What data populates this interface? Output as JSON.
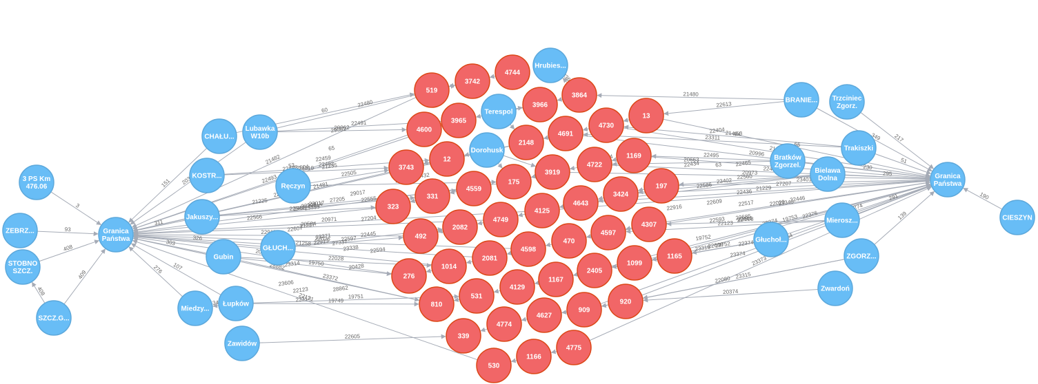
{
  "colors": {
    "place": "#68bdf6",
    "place_stroke": "#5ca8db",
    "record": "#f16667",
    "record_stroke": "#dc4717",
    "edge": "#a5abb6",
    "label": "#ffffff"
  },
  "nodes": [
    {
      "id": "gp_l",
      "lines": [
        "Granica",
        "Państwa"
      ],
      "kind": "place"
    },
    {
      "id": "gp_r",
      "lines": [
        "Granica",
        "Państwa"
      ],
      "kind": "place"
    },
    {
      "id": "ps3",
      "lines": [
        "3 PS Km",
        "476.06"
      ],
      "kind": "place"
    },
    {
      "id": "zebrz",
      "lines": [
        "ZEBRZ..."
      ],
      "kind": "place"
    },
    {
      "id": "stobno",
      "lines": [
        "STOBNO",
        "SZCZ."
      ],
      "kind": "place"
    },
    {
      "id": "szczg",
      "lines": [
        "SZCZ.G..."
      ],
      "kind": "place"
    },
    {
      "id": "chalu",
      "lines": [
        "CHAŁU..."
      ],
      "kind": "place"
    },
    {
      "id": "lubawka",
      "lines": [
        "Lubawka",
        "W10b"
      ],
      "kind": "place"
    },
    {
      "id": "kostr",
      "lines": [
        "KOSTR..."
      ],
      "kind": "place"
    },
    {
      "id": "reczyn",
      "lines": [
        "Ręczyn"
      ],
      "kind": "place"
    },
    {
      "id": "jakuszy",
      "lines": [
        "Jakuszy..."
      ],
      "kind": "place"
    },
    {
      "id": "gluch",
      "lines": [
        "GŁUCH..."
      ],
      "kind": "place"
    },
    {
      "id": "gubin",
      "lines": [
        "Gubin"
      ],
      "kind": "place"
    },
    {
      "id": "miedzy",
      "lines": [
        "Miedzy..."
      ],
      "kind": "place"
    },
    {
      "id": "lupkow",
      "lines": [
        "Łupków"
      ],
      "kind": "place"
    },
    {
      "id": "zawidow",
      "lines": [
        "Zawidów"
      ],
      "kind": "place"
    },
    {
      "id": "hrubies",
      "lines": [
        "Hrubies..."
      ],
      "kind": "place"
    },
    {
      "id": "terespol",
      "lines": [
        "Terespol"
      ],
      "kind": "place"
    },
    {
      "id": "dorohusk",
      "lines": [
        "Dorohusk"
      ],
      "kind": "place"
    },
    {
      "id": "branie",
      "lines": [
        "BRANIE..."
      ],
      "kind": "place"
    },
    {
      "id": "trzciniec",
      "lines": [
        "Trzciniec",
        "Zgorz."
      ],
      "kind": "place"
    },
    {
      "id": "trakiszki",
      "lines": [
        "Trakiszki"
      ],
      "kind": "place"
    },
    {
      "id": "bratkow",
      "lines": [
        "Bratków",
        "Zgorzel."
      ],
      "kind": "place"
    },
    {
      "id": "bielawa",
      "lines": [
        "Bielawa",
        "Dolna"
      ],
      "kind": "place"
    },
    {
      "id": "mierosz",
      "lines": [
        "Mierosz..."
      ],
      "kind": "place"
    },
    {
      "id": "glucholaz",
      "lines": [
        "Głuchoł..."
      ],
      "kind": "place"
    },
    {
      "id": "zgorz",
      "lines": [
        "ZGORZ..."
      ],
      "kind": "place"
    },
    {
      "id": "zwardon",
      "lines": [
        "Zwardoń"
      ],
      "kind": "place"
    },
    {
      "id": "cieszyn",
      "lines": [
        "CIESZYN"
      ],
      "kind": "place"
    },
    {
      "id": "n519",
      "lines": [
        "519"
      ],
      "kind": "record"
    },
    {
      "id": "n3742",
      "lines": [
        "3742"
      ],
      "kind": "record"
    },
    {
      "id": "n4744",
      "lines": [
        "4744"
      ],
      "kind": "record"
    },
    {
      "id": "n3864",
      "lines": [
        "3864"
      ],
      "kind": "record"
    },
    {
      "id": "n3966",
      "lines": [
        "3966"
      ],
      "kind": "record"
    },
    {
      "id": "n4600",
      "lines": [
        "4600"
      ],
      "kind": "record"
    },
    {
      "id": "n3965",
      "lines": [
        "3965"
      ],
      "kind": "record"
    },
    {
      "id": "n13",
      "lines": [
        "13"
      ],
      "kind": "record"
    },
    {
      "id": "n4730",
      "lines": [
        "4730"
      ],
      "kind": "record"
    },
    {
      "id": "n4691",
      "lines": [
        "4691"
      ],
      "kind": "record"
    },
    {
      "id": "n2148",
      "lines": [
        "2148"
      ],
      "kind": "record"
    },
    {
      "id": "n12",
      "lines": [
        "12"
      ],
      "kind": "record"
    },
    {
      "id": "n3743",
      "lines": [
        "3743"
      ],
      "kind": "record"
    },
    {
      "id": "n1169",
      "lines": [
        "1169"
      ],
      "kind": "record"
    },
    {
      "id": "n4722",
      "lines": [
        "4722"
      ],
      "kind": "record"
    },
    {
      "id": "n3919",
      "lines": [
        "3919"
      ],
      "kind": "record"
    },
    {
      "id": "n175",
      "lines": [
        "175"
      ],
      "kind": "record"
    },
    {
      "id": "n197",
      "lines": [
        "197"
      ],
      "kind": "record"
    },
    {
      "id": "n4559",
      "lines": [
        "4559"
      ],
      "kind": "record"
    },
    {
      "id": "n331",
      "lines": [
        "331"
      ],
      "kind": "record"
    },
    {
      "id": "n323",
      "lines": [
        "323"
      ],
      "kind": "record"
    },
    {
      "id": "n3424",
      "lines": [
        "3424"
      ],
      "kind": "record"
    },
    {
      "id": "n4643",
      "lines": [
        "4643"
      ],
      "kind": "record"
    },
    {
      "id": "n4125",
      "lines": [
        "4125"
      ],
      "kind": "record"
    },
    {
      "id": "n4749",
      "lines": [
        "4749"
      ],
      "kind": "record"
    },
    {
      "id": "n2082",
      "lines": [
        "2082"
      ],
      "kind": "record"
    },
    {
      "id": "n492",
      "lines": [
        "492"
      ],
      "kind": "record"
    },
    {
      "id": "n4307",
      "lines": [
        "4307"
      ],
      "kind": "record"
    },
    {
      "id": "n4597",
      "lines": [
        "4597"
      ],
      "kind": "record"
    },
    {
      "id": "n470",
      "lines": [
        "470"
      ],
      "kind": "record"
    },
    {
      "id": "n4598",
      "lines": [
        "4598"
      ],
      "kind": "record"
    },
    {
      "id": "n2081",
      "lines": [
        "2081"
      ],
      "kind": "record"
    },
    {
      "id": "n1014",
      "lines": [
        "1014"
      ],
      "kind": "record"
    },
    {
      "id": "n276",
      "lines": [
        "276"
      ],
      "kind": "record"
    },
    {
      "id": "n1165",
      "lines": [
        "1165"
      ],
      "kind": "record"
    },
    {
      "id": "n1099",
      "lines": [
        "1099"
      ],
      "kind": "record"
    },
    {
      "id": "n2405",
      "lines": [
        "2405"
      ],
      "kind": "record"
    },
    {
      "id": "n1167",
      "lines": [
        "1167"
      ],
      "kind": "record"
    },
    {
      "id": "n4129",
      "lines": [
        "4129"
      ],
      "kind": "record"
    },
    {
      "id": "n531",
      "lines": [
        "531"
      ],
      "kind": "record"
    },
    {
      "id": "n810",
      "lines": [
        "810"
      ],
      "kind": "record"
    },
    {
      "id": "n920",
      "lines": [
        "920"
      ],
      "kind": "record"
    },
    {
      "id": "n909",
      "lines": [
        "909"
      ],
      "kind": "record"
    },
    {
      "id": "n4627",
      "lines": [
        "4627"
      ],
      "kind": "record"
    },
    {
      "id": "n4774",
      "lines": [
        "4774"
      ],
      "kind": "record"
    },
    {
      "id": "n339",
      "lines": [
        "339"
      ],
      "kind": "record"
    },
    {
      "id": "n4775",
      "lines": [
        "4775"
      ],
      "kind": "record"
    },
    {
      "id": "n1166",
      "lines": [
        "1166"
      ],
      "kind": "record"
    },
    {
      "id": "n530",
      "lines": [
        "530"
      ],
      "kind": "record"
    }
  ],
  "edges": [
    {
      "from": "ps3",
      "to": "gp_l",
      "label": "3"
    },
    {
      "from": "zebrz",
      "to": "gp_l",
      "label": "93"
    },
    {
      "from": "stobno",
      "to": "gp_l",
      "label": "408"
    },
    {
      "from": "szczg",
      "to": "gp_l",
      "label": "409"
    },
    {
      "from": "szczg",
      "to": "stobno",
      "label": "408"
    },
    {
      "from": "chalu",
      "to": "gp_l",
      "label": "151"
    },
    {
      "from": "lubawka",
      "to": "gp_l",
      "label": "203"
    },
    {
      "from": "jakuszy",
      "to": "gp_l",
      "label": "311"
    },
    {
      "from": "gubin",
      "to": "gp_l",
      "label": "303"
    },
    {
      "from": "gluch",
      "to": "gp_l",
      "label": "326"
    },
    {
      "from": "lupkow",
      "to": "gp_l",
      "label": "107"
    },
    {
      "from": "miedzy",
      "to": "gp_l",
      "label": "276"
    },
    {
      "from": "lupkow",
      "to": "miedzy",
      "label": "34"
    },
    {
      "from": "lubawka",
      "to": "n4600",
      "label": "20062"
    },
    {
      "from": "lubawka",
      "to": "n3965",
      "label": "22491"
    },
    {
      "from": "chalu",
      "to": "n519",
      "label": "60"
    },
    {
      "from": "lubawka",
      "to": "n3742",
      "label": "22480"
    },
    {
      "from": "kostr",
      "to": "n12",
      "label": "22492"
    },
    {
      "from": "kostr",
      "to": "n3743",
      "label": "23310"
    },
    {
      "from": "reczyn",
      "to": "n3743",
      "label": "22505"
    },
    {
      "from": "reczyn",
      "to": "n175",
      "label": "21230"
    },
    {
      "from": "jakuszy",
      "to": "n323",
      "label": "22547"
    },
    {
      "from": "jakuszy",
      "to": "n331",
      "label": "23017"
    },
    {
      "from": "jakuszy",
      "to": "n4559",
      "label": "27205"
    },
    {
      "from": "gluch",
      "to": "n492",
      "label": "22597"
    },
    {
      "from": "gluch",
      "to": "n2082",
      "label": "22445"
    },
    {
      "from": "gubin",
      "to": "n276",
      "label": "19750"
    },
    {
      "from": "gubin",
      "to": "n1014",
      "label": "22028"
    },
    {
      "from": "gubin",
      "to": "n810",
      "label": "23372"
    },
    {
      "from": "lupkow",
      "to": "n810",
      "label": "19749"
    },
    {
      "from": "lupkow",
      "to": "n531",
      "label": "19751"
    },
    {
      "from": "zawidow",
      "to": "n339",
      "label": "22605"
    },
    {
      "from": "n4600",
      "to": "gp_l",
      "label": "22493"
    },
    {
      "from": "n519",
      "to": "gp_l",
      "label": "21482"
    },
    {
      "from": "n12",
      "to": "gp_l",
      "label": "22558"
    },
    {
      "from": "n323",
      "to": "gp_l",
      "label": "22566"
    },
    {
      "from": "n492",
      "to": "gp_l",
      "label": "22915"
    },
    {
      "from": "n276",
      "to": "gp_l",
      "label": "20920"
    },
    {
      "from": "n810",
      "to": "gp_l",
      "label": "28882"
    },
    {
      "from": "n530",
      "to": "gp_l",
      "label": "22121"
    },
    {
      "from": "n1014",
      "to": "gp_l",
      "label": "20375"
    },
    {
      "from": "n2081",
      "to": "gp_l",
      "label": "21258"
    },
    {
      "from": "n4598",
      "to": "gp_l",
      "label": "22026"
    },
    {
      "from": "n4749",
      "to": "gp_l",
      "label": "20584"
    },
    {
      "from": "n4125",
      "to": "gp_l",
      "label": "20971"
    },
    {
      "from": "n175",
      "to": "gp_l",
      "label": "22614"
    },
    {
      "from": "n2148",
      "to": "gp_l",
      "label": "21481"
    },
    {
      "from": "n3965",
      "to": "gp_l",
      "label": "21223"
    },
    {
      "from": "terespol",
      "to": "n3966",
      "label": ""
    },
    {
      "from": "terespol",
      "to": "n2148",
      "label": ""
    },
    {
      "from": "dorohusk",
      "to": "n175",
      "label": ""
    },
    {
      "from": "dorohusk",
      "to": "n3919",
      "label": ""
    },
    {
      "from": "branie",
      "to": "n3864",
      "label": "21480"
    },
    {
      "from": "branie",
      "to": "n13",
      "label": "22613"
    },
    {
      "from": "trakiszki",
      "to": "n4730",
      "label": "21484"
    },
    {
      "from": "trakiszki",
      "to": "n4691",
      "label": "23311"
    },
    {
      "from": "bratkow",
      "to": "n1169",
      "label": "22495"
    },
    {
      "from": "bratkow",
      "to": "n4722",
      "label": "20663"
    },
    {
      "from": "bielawa",
      "to": "n197",
      "label": "22560"
    },
    {
      "from": "bielawa",
      "to": "n3424",
      "label": "23402"
    },
    {
      "from": "bielawa",
      "to": "n4643",
      "label": "22586"
    },
    {
      "from": "mierosz",
      "to": "n4307",
      "label": "22508"
    },
    {
      "from": "mierosz",
      "to": "n4597",
      "label": "22123"
    },
    {
      "from": "glucholaz",
      "to": "n1165",
      "label": "19752"
    },
    {
      "from": "glucholaz",
      "to": "n1099",
      "label": "23316"
    },
    {
      "from": "glucholaz",
      "to": "n2405",
      "label": "22608"
    },
    {
      "from": "zgorz",
      "to": "n920",
      "label": "23315"
    },
    {
      "from": "zgorz",
      "to": "n909",
      "label": "22080"
    },
    {
      "from": "zwardon",
      "to": "n920",
      "label": "20374"
    },
    {
      "from": "trzciniec",
      "to": "gp_r",
      "label": "217"
    },
    {
      "from": "branie",
      "to": "gp_r",
      "label": "349"
    },
    {
      "from": "trakiszki",
      "to": "gp_r",
      "label": "51"
    },
    {
      "from": "bielawa",
      "to": "gp_r",
      "label": "295"
    },
    {
      "from": "bratkow",
      "to": "gp_r",
      "label": "230"
    },
    {
      "from": "mierosz",
      "to": "gp_r",
      "label": "291"
    },
    {
      "from": "glucholaz",
      "to": "gp_r",
      "label": "274"
    },
    {
      "from": "zgorz",
      "to": "gp_r",
      "label": "139"
    },
    {
      "from": "cieszyn",
      "to": "gp_r",
      "label": "190"
    },
    {
      "from": "n13",
      "to": "gp_r",
      "label": "65"
    },
    {
      "from": "n4730",
      "to": "gp_r",
      "label": "21486"
    },
    {
      "from": "n1169",
      "to": "gp_r",
      "label": "21261"
    },
    {
      "from": "n197",
      "to": "gp_r",
      "label": "23401"
    },
    {
      "from": "n3424",
      "to": "gp_r",
      "label": "27207"
    },
    {
      "from": "n4307",
      "to": "gp_r",
      "label": "22446"
    },
    {
      "from": "n4597",
      "to": "gp_r",
      "label": "22020"
    },
    {
      "from": "n4643",
      "to": "gp_r",
      "label": "21229"
    },
    {
      "from": "n4125",
      "to": "gp_r",
      "label": "22436"
    },
    {
      "from": "n3919",
      "to": "gp_r",
      "label": "20973"
    },
    {
      "from": "n4722",
      "to": "gp_r",
      "label": "22438"
    },
    {
      "from": "n4691",
      "to": "gp_r",
      "label": "20996"
    },
    {
      "from": "n1165",
      "to": "gp_r",
      "label": "22376"
    },
    {
      "from": "n1099",
      "to": "gp_r",
      "label": "19753"
    },
    {
      "from": "n2405",
      "to": "gp_r",
      "label": "20374"
    },
    {
      "from": "n920",
      "to": "gp_r",
      "label": "28864"
    },
    {
      "from": "n4775",
      "to": "gp_r",
      "label": "23373"
    },
    {
      "from": "n909",
      "to": "gp_r",
      "label": "22444"
    },
    {
      "from": "n3864",
      "to": "hrubies",
      "label": "3369"
    },
    {
      "from": "n3742",
      "to": "n519",
      "label": ""
    },
    {
      "from": "n4744",
      "to": "n3742",
      "label": ""
    },
    {
      "from": "n3966",
      "to": "n3965",
      "label": ""
    },
    {
      "from": "n3965",
      "to": "n4600",
      "label": ""
    },
    {
      "from": "n2148",
      "to": "n12",
      "label": ""
    },
    {
      "from": "n12",
      "to": "n3743",
      "label": ""
    },
    {
      "from": "n331",
      "to": "n323",
      "label": ""
    },
    {
      "from": "n4559",
      "to": "n331",
      "label": ""
    },
    {
      "from": "n2082",
      "to": "n492",
      "label": ""
    },
    {
      "from": "n4749",
      "to": "n2082",
      "label": ""
    },
    {
      "from": "n1014",
      "to": "n276",
      "label": ""
    },
    {
      "from": "n2081",
      "to": "n1014",
      "label": ""
    },
    {
      "from": "n531",
      "to": "n810",
      "label": ""
    },
    {
      "from": "n4129",
      "to": "n531",
      "label": ""
    },
    {
      "from": "n4774",
      "to": "n339",
      "label": ""
    },
    {
      "from": "n4627",
      "to": "n4774",
      "label": ""
    },
    {
      "from": "n1166",
      "to": "n530",
      "label": ""
    },
    {
      "from": "n4775",
      "to": "n1166",
      "label": ""
    },
    {
      "from": "n4730",
      "to": "n4691",
      "label": ""
    },
    {
      "from": "n4691",
      "to": "n2148",
      "label": ""
    },
    {
      "from": "n4722",
      "to": "n3919",
      "label": ""
    },
    {
      "from": "n3919",
      "to": "n175",
      "label": ""
    },
    {
      "from": "n4643",
      "to": "n4125",
      "label": ""
    },
    {
      "from": "n4125",
      "to": "n4749",
      "label": ""
    },
    {
      "from": "n470",
      "to": "n4598",
      "label": ""
    },
    {
      "from": "n4598",
      "to": "n2081",
      "label": ""
    },
    {
      "from": "n2405",
      "to": "n1167",
      "label": ""
    },
    {
      "from": "n1167",
      "to": "n4129",
      "label": ""
    },
    {
      "from": "n909",
      "to": "n4627",
      "label": ""
    },
    {
      "from": "n13",
      "to": "n4730",
      "label": ""
    },
    {
      "from": "n1169",
      "to": "n4722",
      "label": ""
    },
    {
      "from": "n197",
      "to": "n3424",
      "label": ""
    },
    {
      "from": "n3424",
      "to": "n4643",
      "label": ""
    },
    {
      "from": "n4307",
      "to": "n4597",
      "label": ""
    },
    {
      "from": "n4597",
      "to": "n470",
      "label": ""
    },
    {
      "from": "n1165",
      "to": "n1099",
      "label": ""
    },
    {
      "from": "n1099",
      "to": "n2405",
      "label": ""
    },
    {
      "from": "n920",
      "to": "n909",
      "label": ""
    },
    {
      "from": "n3864",
      "to": "n3966",
      "label": ""
    }
  ],
  "extra_edge_labels": [
    "22404",
    "453",
    "22434",
    "63",
    "22465",
    "1228",
    "22916",
    "22609",
    "22517",
    "23340",
    "22593",
    "22685",
    "22444",
    "19752",
    "22608",
    "23374",
    "22374",
    "21227",
    "22607",
    "23371",
    "27337",
    "23338",
    "22913",
    "22594",
    "23314",
    "20428",
    "28862",
    "22123",
    "23313",
    "23606",
    "29017",
    "22555",
    "27204",
    "23399",
    "23398",
    "21225",
    "22493",
    "22504",
    "21235",
    "28432",
    "2458",
    "65",
    "53",
    "22459",
    "3424",
    "29062"
  ]
}
